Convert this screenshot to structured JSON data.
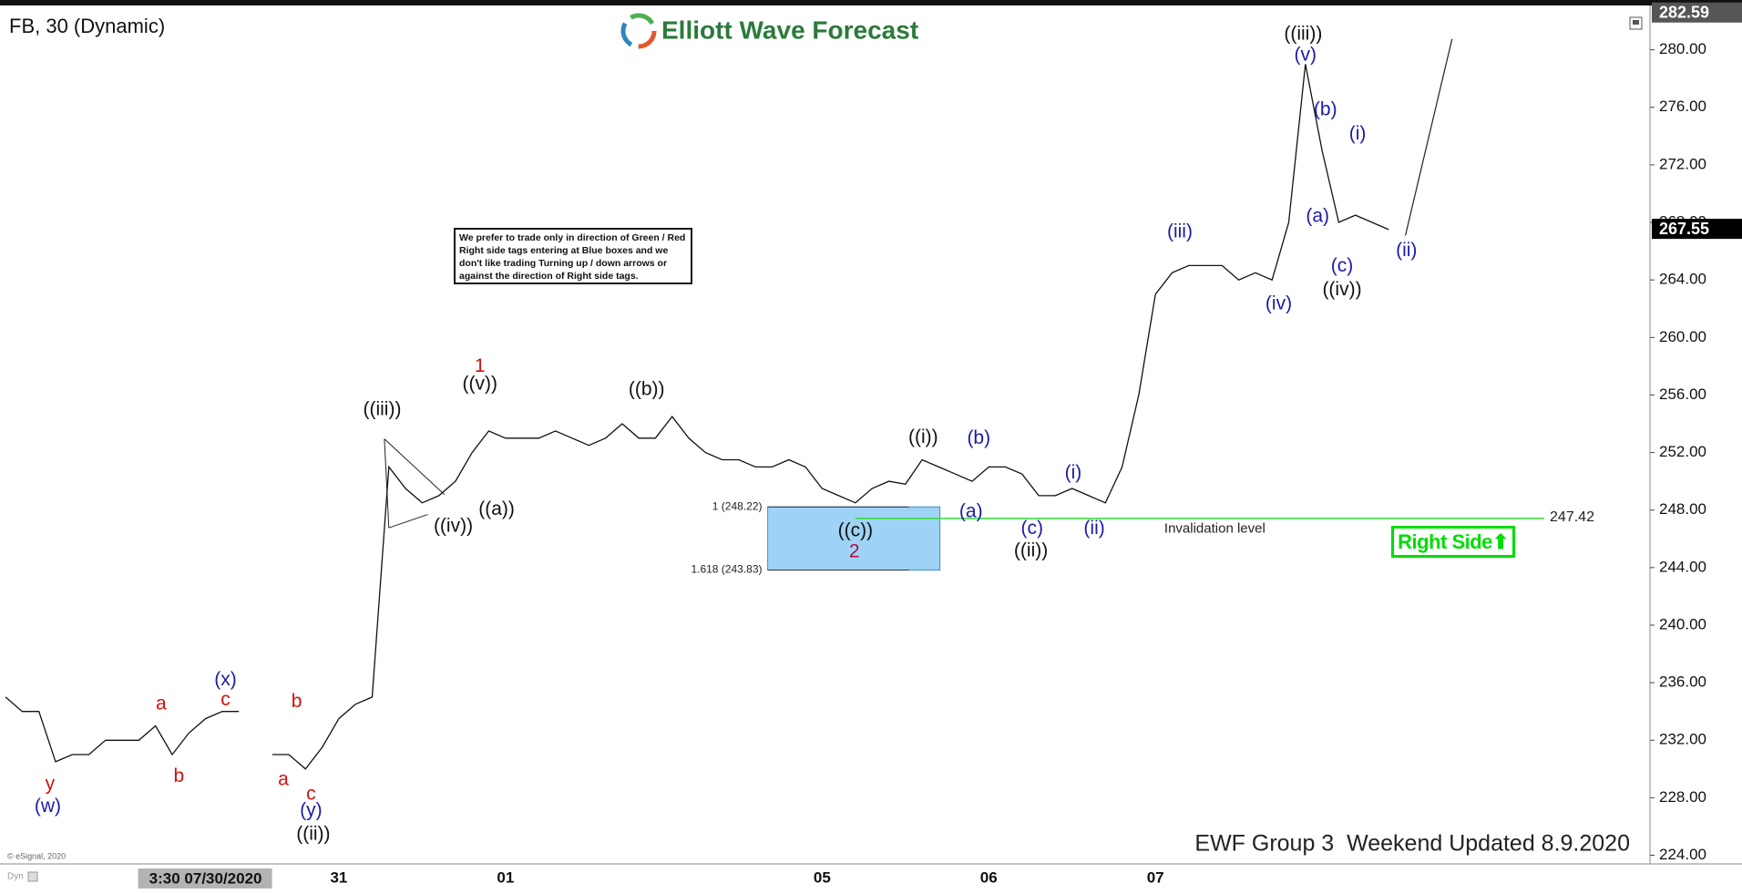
{
  "chart_data": {
    "type": "line",
    "title": "FB, 30 (Dynamic)",
    "brand": "Elliott Wave Forecast",
    "footer": "EWF Group 3  Weekend Updated 8.9.2020",
    "copyright": "© eSignal, 2020",
    "mode_label": "Dyn",
    "cursor_time": "3:30 07/30/2020",
    "note": "We prefer to trade only in direction of Green / Red Right side tags entering at Blue boxes and we don't like trading Turning up / down arrows or against the direction of Right side tags.",
    "right_side_tag": "Right Side",
    "right_side_color": "#00dd00",
    "categories": [
      null,
      null,
      null,
      null,
      null,
      null,
      null,
      null,
      null,
      null,
      null,
      null,
      null,
      null,
      null,
      null,
      null,
      null,
      null,
      null,
      "31",
      null,
      null,
      null,
      null,
      null,
      null,
      null,
      null,
      null,
      "01",
      null,
      null,
      null,
      null,
      null,
      null,
      null,
      null,
      null,
      null,
      null,
      null,
      null,
      null,
      null,
      null,
      null,
      null,
      "05",
      null,
      null,
      null,
      null,
      null,
      null,
      null,
      null,
      null,
      "06",
      null,
      null,
      null,
      null,
      null,
      null,
      null,
      null,
      null,
      "07",
      null,
      null,
      null,
      null,
      null,
      null,
      null,
      null,
      null,
      null,
      null,
      null,
      null,
      null
    ],
    "series": [
      {
        "name": "FB",
        "color": "#111111",
        "values": [
          235,
          234,
          234,
          230.5,
          231,
          231,
          232,
          232,
          232,
          233,
          231,
          232.5,
          233.5,
          234,
          234,
          null,
          231,
          231,
          230,
          231.5,
          233.5,
          234.5,
          235,
          251,
          249.5,
          248.5,
          249,
          250,
          252,
          253.5,
          253,
          253,
          253,
          253.5,
          253,
          252.5,
          253,
          254,
          253,
          253,
          254.5,
          253,
          252,
          251.5,
          251.5,
          251,
          251,
          251.5,
          251,
          249.5,
          249,
          248.5,
          249.5,
          250,
          249.8,
          251.5,
          251,
          250.5,
          250,
          251,
          251,
          250.5,
          249,
          249,
          249.5,
          249,
          248.5,
          251,
          256,
          263,
          264.5,
          265,
          265,
          265,
          264,
          264.5,
          264,
          268,
          279,
          273,
          268,
          268.5,
          268,
          267.5
        ]
      }
    ],
    "ylim": [
      223.4,
      282.7
    ],
    "yticks": [
      {
        "value": 224,
        "label": "224.00"
      },
      {
        "value": 228,
        "label": "228.00"
      },
      {
        "value": 232,
        "label": "232.00"
      },
      {
        "value": 236,
        "label": "236.00"
      },
      {
        "value": 240,
        "label": "240.00"
      },
      {
        "value": 244,
        "label": "244.00"
      },
      {
        "value": 248,
        "label": "248.00"
      },
      {
        "value": 252,
        "label": "252.00"
      },
      {
        "value": 256,
        "label": "256.00"
      },
      {
        "value": 260,
        "label": "260.00"
      },
      {
        "value": 264,
        "label": "264.00"
      },
      {
        "value": 268,
        "label": "268.00"
      },
      {
        "value": 272,
        "label": "272.00"
      },
      {
        "value": 276,
        "label": "276.00"
      },
      {
        "value": 280,
        "label": "280.00"
      }
    ],
    "high_tag": 282.59,
    "last_price": 267.55,
    "fib_levels": [
      {
        "label": "1 (248.22)",
        "value": 248.22
      },
      {
        "label": "1.618 (243.83)",
        "value": 243.83
      }
    ],
    "box_color": "#9fd3f5",
    "invalidation": {
      "label": "Invalidation level",
      "value": 247.42,
      "color": "#33dd33"
    },
    "annotations": [
      {
        "text": "((ii))",
        "color": "#111111"
      },
      {
        "text": "((iii))",
        "color": "#111111"
      },
      {
        "text": "((iv))",
        "color": "#111111"
      },
      {
        "text": "((a))",
        "color": "#111111"
      },
      {
        "text": "((v))",
        "color": "#111111"
      },
      {
        "text": "((b))",
        "color": "#111111"
      },
      {
        "text": "((c))",
        "color": "#111111"
      },
      {
        "text": "((i))",
        "color": "#111111"
      },
      {
        "text": "((ii))",
        "color": "#111111"
      },
      {
        "text": "((iii))",
        "color": "#111111"
      },
      {
        "text": "((iv))",
        "color": "#111111"
      },
      {
        "text": "(w)",
        "color": "#1a1aaa"
      },
      {
        "text": "(x)",
        "color": "#1a1aaa"
      },
      {
        "text": "(y)",
        "color": "#1a1aaa"
      },
      {
        "text": "(a)",
        "color": "#1a1aaa"
      },
      {
        "text": "(b)",
        "color": "#1a1aaa"
      },
      {
        "text": "(c)",
        "color": "#1a1aaa"
      },
      {
        "text": "(i)",
        "color": "#1a1aaa"
      },
      {
        "text": "(ii)",
        "color": "#1a1aaa"
      },
      {
        "text": "(iii)",
        "color": "#1a1aaa"
      },
      {
        "text": "(iv)",
        "color": "#1a1aaa"
      },
      {
        "text": "(v)",
        "color": "#1a1aaa"
      },
      {
        "text": "(b)",
        "color": "#1a1aaa"
      },
      {
        "text": "(a)",
        "color": "#1a1aaa"
      },
      {
        "text": "(c)",
        "color": "#1a1aaa"
      },
      {
        "text": "(i)",
        "color": "#1a1aaa"
      },
      {
        "text": "(ii)",
        "color": "#1a1aaa"
      },
      {
        "text": "y",
        "color": "#d01010"
      },
      {
        "text": "a",
        "color": "#d01010"
      },
      {
        "text": "b",
        "color": "#d01010"
      },
      {
        "text": "c",
        "color": "#d01010"
      },
      {
        "text": "b",
        "color": "#d01010"
      },
      {
        "text": "a",
        "color": "#d01010"
      },
      {
        "text": "c",
        "color": "#d01010"
      },
      {
        "text": "1",
        "color": "#d01010"
      },
      {
        "text": "2",
        "color": "#b01040"
      }
    ]
  }
}
